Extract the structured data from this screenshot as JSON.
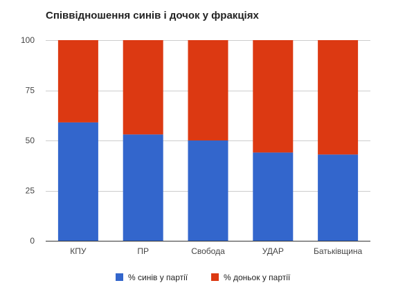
{
  "chart_data": {
    "type": "bar",
    "stacked": true,
    "title": "Співвідношення синів і дочок у фракціях",
    "categories": [
      "КПУ",
      "ПР",
      "Свобода",
      "УДАР",
      "Батьківщина"
    ],
    "series": [
      {
        "name": "% синів у партії",
        "color": "#3366cc",
        "values": [
          59,
          53,
          50,
          44,
          43
        ]
      },
      {
        "name": "% доньок у партії",
        "color": "#dc3912",
        "values": [
          41,
          47,
          50,
          56,
          57
        ]
      }
    ],
    "ylim": [
      0,
      100
    ],
    "yticks": [
      0,
      25,
      50,
      75,
      100
    ],
    "grid": true,
    "legend_position": "bottom"
  }
}
